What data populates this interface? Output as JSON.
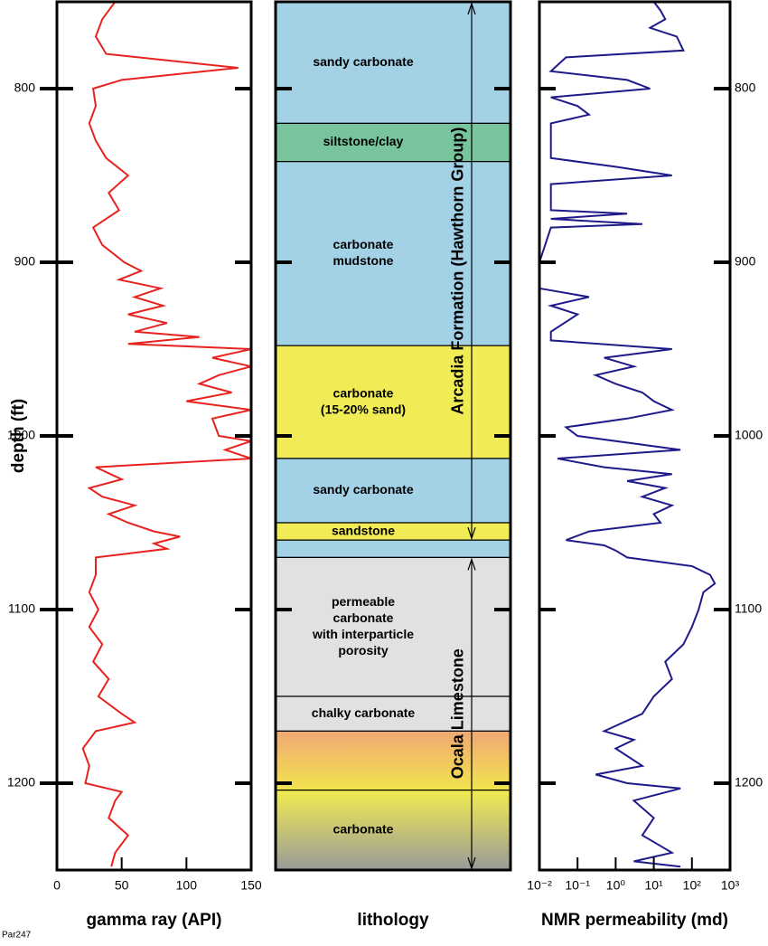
{
  "footer": "Par247",
  "chart_data": [
    {
      "type": "line",
      "orientation": "vertical",
      "xlabel": "gamma ray (API)",
      "ylabel": "depth (ft)",
      "color": "#e8231f",
      "xlim": [
        0,
        150
      ],
      "xticks": [
        0,
        50,
        100,
        150
      ],
      "ylim": [
        750,
        1250
      ],
      "yticks": [
        800,
        900,
        1000,
        1100,
        1200
      ],
      "y_inverted": true,
      "depth": [
        750,
        760,
        770,
        780,
        788,
        795,
        800,
        810,
        820,
        830,
        840,
        850,
        860,
        870,
        880,
        890,
        900,
        905,
        910,
        915,
        920,
        925,
        930,
        935,
        940,
        943,
        947,
        950,
        955,
        960,
        965,
        970,
        975,
        980,
        985,
        990,
        1000,
        1003,
        1008,
        1013,
        1018,
        1025,
        1030,
        1035,
        1040,
        1045,
        1050,
        1055,
        1058,
        1062,
        1065,
        1070,
        1080,
        1090,
        1100,
        1110,
        1120,
        1130,
        1140,
        1150,
        1160,
        1165,
        1170,
        1180,
        1190,
        1200,
        1205,
        1210,
        1220,
        1230,
        1240,
        1248
      ],
      "values": [
        45,
        35,
        30,
        38,
        140,
        50,
        28,
        30,
        25,
        30,
        38,
        55,
        40,
        48,
        28,
        35,
        52,
        65,
        48,
        80,
        60,
        82,
        55,
        85,
        60,
        110,
        55,
        150,
        120,
        150,
        125,
        110,
        135,
        100,
        150,
        120,
        125,
        150,
        130,
        150,
        30,
        50,
        25,
        35,
        60,
        40,
        55,
        75,
        95,
        75,
        85,
        30,
        30,
        25,
        32,
        25,
        35,
        28,
        40,
        32,
        50,
        60,
        30,
        20,
        25,
        22,
        50,
        45,
        40,
        55,
        45,
        42
      ]
    },
    {
      "type": "lithology",
      "xlabel": "lithology",
      "ylim": [
        750,
        1250
      ],
      "yticks": [
        800,
        900,
        1000,
        1100,
        1200
      ],
      "layers": [
        {
          "top": 750,
          "bottom": 820,
          "lines": [
            "sandy carbonate"
          ],
          "color": "#a3d2e7"
        },
        {
          "top": 820,
          "bottom": 842,
          "lines": [
            "siltstone/clay"
          ],
          "color": "#78c59d"
        },
        {
          "top": 842,
          "bottom": 948,
          "lines": [
            "carbonate",
            "mudstone"
          ],
          "color": "#a3d2e7"
        },
        {
          "top": 948,
          "bottom": 1013,
          "lines": [
            "carbonate",
            "(15-20% sand)"
          ],
          "color": "#f1ec55"
        },
        {
          "top": 1013,
          "bottom": 1050,
          "lines": [
            "sandy carbonate"
          ],
          "color": "#a3d2e7"
        },
        {
          "top": 1050,
          "bottom": 1060,
          "lines": [
            "sandstone"
          ],
          "color": "#f1ec55"
        },
        {
          "top": 1060,
          "bottom": 1070,
          "lines": null,
          "color": "#a3d2e7"
        },
        {
          "top": 1070,
          "bottom": 1150,
          "lines": [
            "permeable",
            "carbonate",
            "with interparticle",
            "porosity"
          ],
          "color": "#e1e1e1"
        },
        {
          "top": 1150,
          "bottom": 1170,
          "lines": [
            "chalky carbonate"
          ],
          "color": "#e1e1e1"
        },
        {
          "top": 1170,
          "bottom": 1204,
          "lines": null,
          "color": "#f0a874",
          "color_bottom": "#f2e44e"
        },
        {
          "top": 1204,
          "bottom": 1250,
          "lines": [
            "carbonate"
          ],
          "color": "#f2ec50",
          "color_bottom": "#9a9a9a"
        }
      ],
      "formations": [
        {
          "name": "Arcadia Formation (Hawthorn Group)",
          "top": 750,
          "bottom": 1060
        },
        {
          "name": "Ocala Limestone",
          "top": 1070,
          "bottom": 1250
        }
      ]
    },
    {
      "type": "line",
      "orientation": "vertical",
      "xlabel": "NMR permeability (md)",
      "xscale": "log",
      "color": "#1f1a8a",
      "xlim": [
        0.01,
        1000
      ],
      "xticks": [
        {
          "value": 0.01,
          "label": "10⁻²"
        },
        {
          "value": 0.1,
          "label": "10⁻¹"
        },
        {
          "value": 1,
          "label": "10⁰"
        },
        {
          "value": 10,
          "label": "10¹"
        },
        {
          "value": 100,
          "label": "10²"
        },
        {
          "value": 1000,
          "label": "10³"
        }
      ],
      "ylim": [
        750,
        1250
      ],
      "yticks": [
        800,
        900,
        1000,
        1100,
        1200
      ],
      "y_inverted": true,
      "depth": [
        750,
        755,
        760,
        765,
        770,
        778,
        782,
        790,
        795,
        800,
        805,
        810,
        815,
        820,
        830,
        840,
        845,
        850,
        855,
        870,
        872,
        875,
        878,
        880,
        900,
        915,
        920,
        925,
        930,
        940,
        945,
        950,
        955,
        960,
        965,
        970,
        975,
        980,
        985,
        990,
        995,
        1000,
        1008,
        1013,
        1018,
        1022,
        1026,
        1030,
        1035,
        1040,
        1045,
        1050,
        1055,
        1060,
        1063,
        1066,
        1070,
        1075,
        1080,
        1085,
        1090,
        1100,
        1110,
        1120,
        1130,
        1140,
        1150,
        1160,
        1170,
        1175,
        1180,
        1190,
        1195,
        1200,
        1203,
        1210,
        1220,
        1230,
        1240,
        1245,
        1248
      ],
      "values": [
        10,
        15,
        20,
        8,
        40,
        60,
        0.05,
        0.02,
        2,
        8,
        0.02,
        0.1,
        0.2,
        0.02,
        0.02,
        0.02,
        1,
        30,
        0.02,
        0.02,
        2,
        0.02,
        5,
        0.02,
        0.01,
        0.01,
        0.2,
        0.02,
        0.1,
        0.02,
        0.02,
        30,
        0.5,
        3,
        0.3,
        1,
        5,
        10,
        30,
        2,
        0.05,
        0.1,
        50,
        0.03,
        0.5,
        30,
        2,
        20,
        5,
        30,
        10,
        15,
        0.2,
        0.05,
        0.5,
        1,
        2,
        100,
        300,
        400,
        200,
        150,
        100,
        60,
        20,
        30,
        10,
        5,
        0.5,
        3,
        1,
        5,
        0.3,
        2,
        50,
        3,
        10,
        5,
        30,
        3,
        50
      ]
    }
  ]
}
